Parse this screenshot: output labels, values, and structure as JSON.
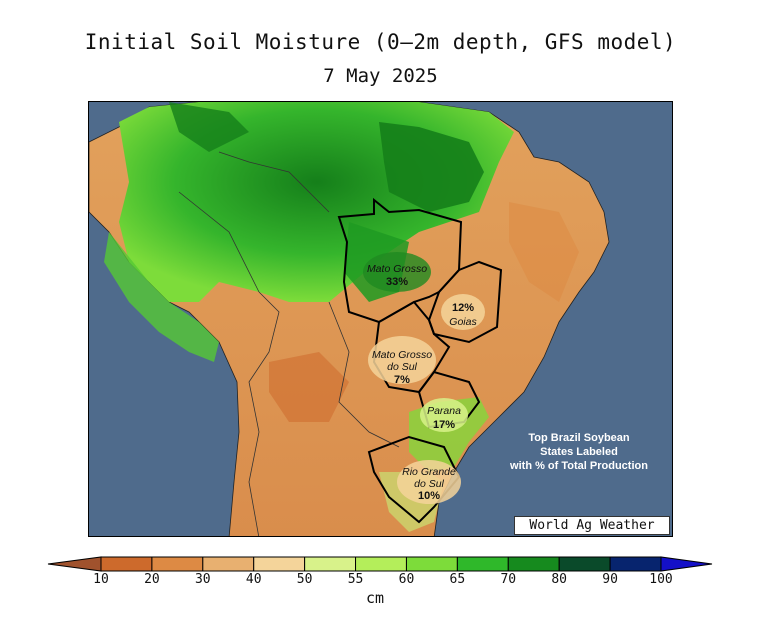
{
  "title": "Initial Soil Moisture (0–2m depth, GFS model)",
  "date": "7 May 2025",
  "credit": "World Ag Weather",
  "note": [
    "Top Brazil Soybean",
    "States Labeled",
    "with % of Total Production"
  ],
  "states": [
    {
      "name": "Mato Grosso",
      "pct": "33%"
    },
    {
      "name": "Goias",
      "pct": "12%"
    },
    {
      "name": "Mato Grosso do Sul",
      "pct": "7%"
    },
    {
      "name": "Parana",
      "pct": "17%"
    },
    {
      "name": "Rio Grande do Sul",
      "pct": "10%"
    }
  ],
  "legend": {
    "unit": "cm",
    "ticks": [
      "10",
      "20",
      "30",
      "40",
      "50",
      "55",
      "60",
      "65",
      "70",
      "80",
      "90",
      "100"
    ],
    "colors": [
      "#a0522d",
      "#cd6a2c",
      "#dd8a44",
      "#e8b070",
      "#f4d49a",
      "#d8f28a",
      "#b4ee5a",
      "#7ddc3a",
      "#2fb82a",
      "#168a1e",
      "#0a4a2a",
      "#07246e",
      "#1410c8"
    ]
  },
  "colors": {
    "ocean": "#4f6b8c",
    "border": "#000000"
  }
}
